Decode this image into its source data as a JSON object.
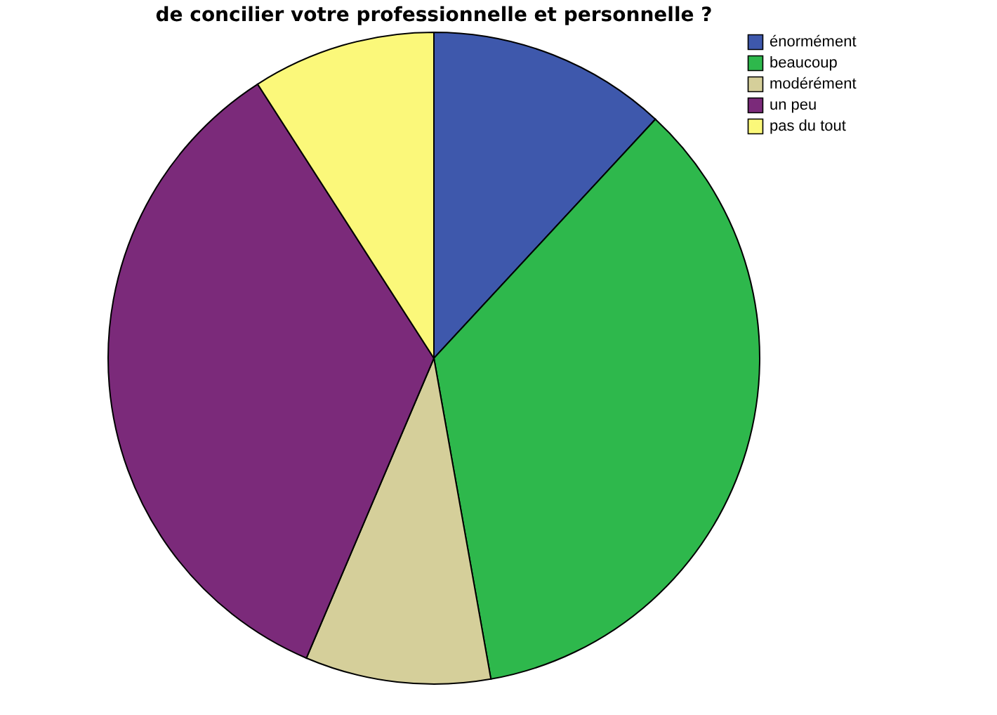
{
  "chart_data": {
    "type": "pie",
    "title": "de concilier votre professionnelle et personnelle ?",
    "categories": [
      "énormément",
      "beaucoup",
      "modérément",
      "un peu",
      "pas du tout"
    ],
    "values": [
      11.9,
      35.3,
      9.2,
      34.5,
      9.1
    ],
    "colors": [
      "#3e58ac",
      "#2eb84c",
      "#d5cf9a",
      "#7b2a7a",
      "#fbf87a"
    ],
    "legend": "top right"
  }
}
